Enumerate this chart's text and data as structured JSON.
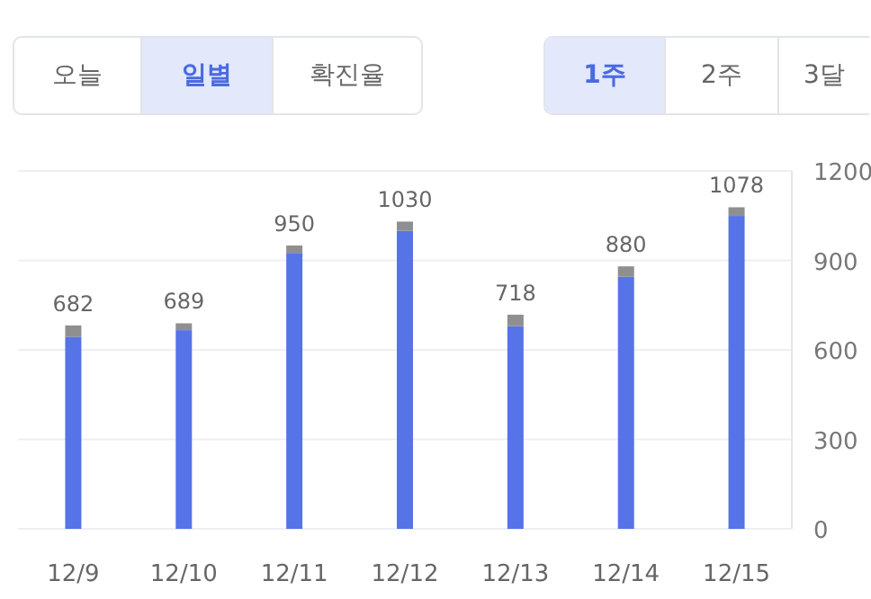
{
  "chart_data": {
    "type": "bar",
    "stacked": true,
    "categories": [
      "12/9",
      "12/10",
      "12/11",
      "12/12",
      "12/13",
      "12/14",
      "12/15"
    ],
    "series": [
      {
        "color": "#5673e8",
        "values": [
          644,
          666,
          925,
          999,
          680,
          845,
          1049
        ]
      },
      {
        "color": "#8f8f8f",
        "values": [
          38,
          23,
          25,
          31,
          38,
          35,
          29
        ]
      }
    ],
    "totals": [
      "682",
      "689",
      "950",
      "1030",
      "718",
      "880",
      "1078"
    ],
    "ylim": [
      0,
      1200
    ],
    "yticks": [
      0,
      300,
      600,
      900,
      1200
    ],
    "grid": "y",
    "annotations": [
      "오늘",
      "일별",
      "확진율",
      "1주",
      "2주",
      "3달"
    ]
  }
}
